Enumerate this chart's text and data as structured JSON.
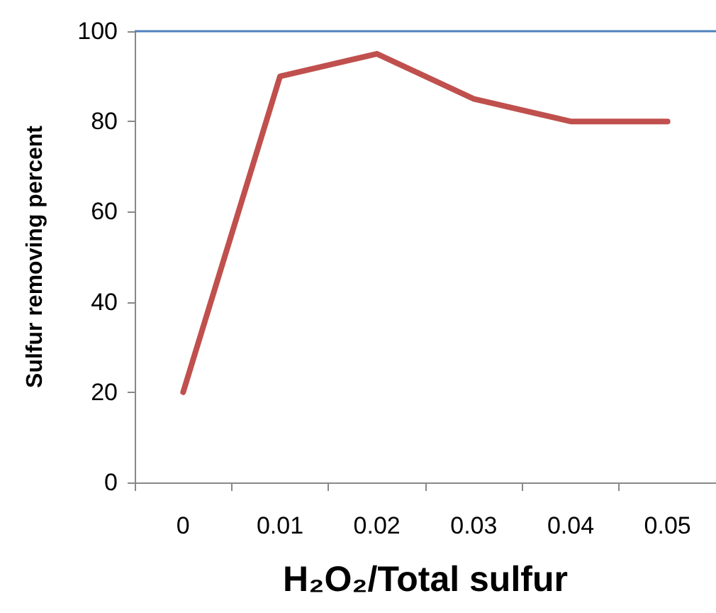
{
  "chart_data": {
    "type": "line",
    "xlabel": "H₂O₂/Total sulfur",
    "ylabel": "Sulfur removing percent",
    "categories": [
      "0",
      "0.01",
      "0.02",
      "0.03",
      "0.04",
      "0.05"
    ],
    "series": [
      {
        "color": "#c0504d",
        "values": [
          20,
          90,
          95,
          85,
          80,
          80
        ]
      }
    ],
    "ylim": [
      0,
      100
    ],
    "yticks": [
      0,
      20,
      40,
      60,
      80,
      100
    ],
    "ref_lines": [
      {
        "axis": "y",
        "value": 100,
        "color": "#4f81bd"
      }
    ],
    "marker": "none",
    "line_style": "solid"
  }
}
